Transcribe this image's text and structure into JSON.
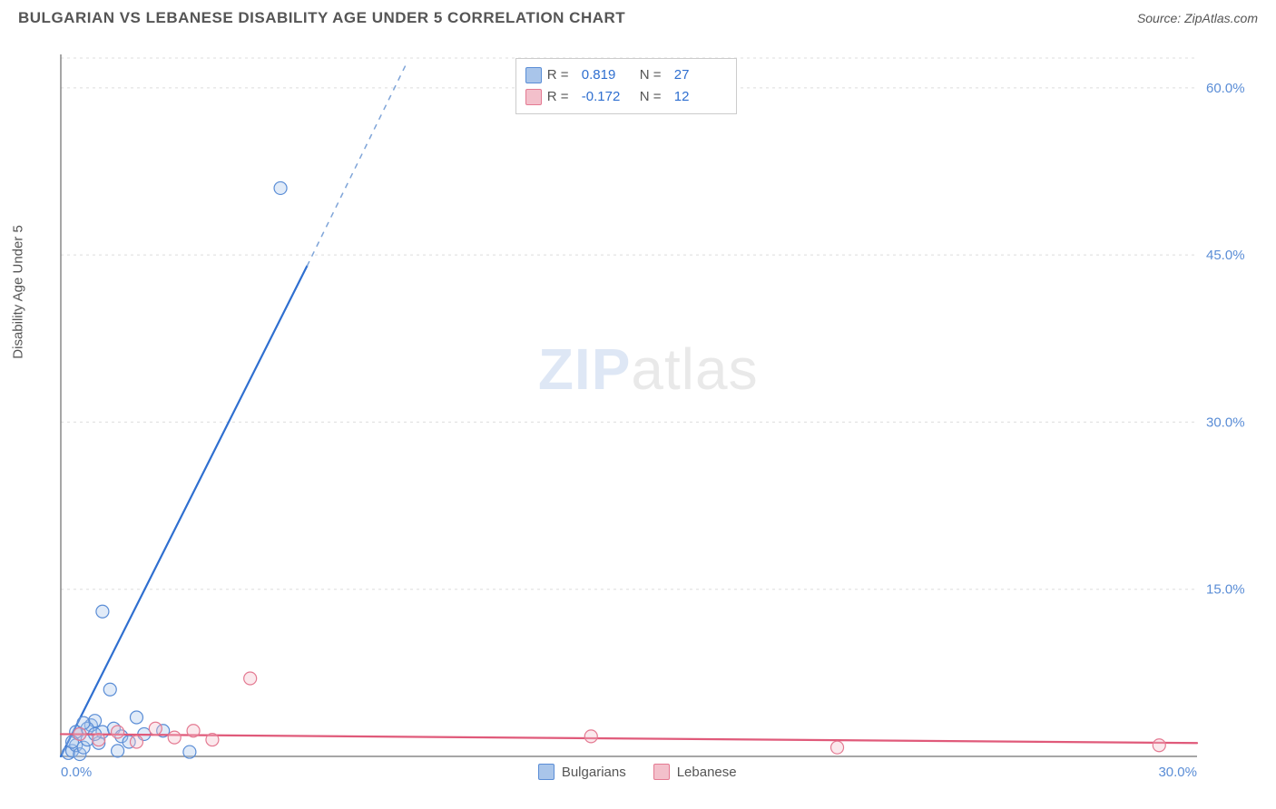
{
  "title": "BULGARIAN VS LEBANESE DISABILITY AGE UNDER 5 CORRELATION CHART",
  "source_label": "Source: ZipAtlas.com",
  "ylabel": "Disability Age Under 5",
  "watermark_zip": "ZIP",
  "watermark_atlas": "atlas",
  "chart": {
    "type": "scatter",
    "background": "#ffffff",
    "grid_color": "#dddddd",
    "axis_color": "#888888",
    "tick_color": "#5a8dd6",
    "xlim": [
      0,
      30
    ],
    "ylim": [
      0,
      63
    ],
    "xticks": [
      {
        "v": 0,
        "label": "0.0%"
      },
      {
        "v": 30,
        "label": "30.0%"
      }
    ],
    "yticks": [
      {
        "v": 15,
        "label": "15.0%"
      },
      {
        "v": 30,
        "label": "30.0%"
      },
      {
        "v": 45,
        "label": "45.0%"
      },
      {
        "v": 60,
        "label": "60.0%"
      }
    ],
    "marker_radius": 7,
    "marker_stroke_width": 1.2,
    "marker_fill_opacity": 0.35,
    "line_width": 2.2
  },
  "series": [
    {
      "name": "Bulgarians",
      "marker_fill": "#a9c5ea",
      "marker_stroke": "#5a8dd6",
      "line_color": "#2f6fd0",
      "dash_extension_color": "#7ea4d8",
      "R": "0.819",
      "N": "27",
      "regression": {
        "x1": 0,
        "y1": 0,
        "x2": 6.5,
        "y2": 44,
        "extend_x": 9.1,
        "extend_y": 62
      },
      "points": [
        [
          0.2,
          0.3
        ],
        [
          0.3,
          0.5
        ],
        [
          0.4,
          1.0
        ],
        [
          0.5,
          0.2
        ],
        [
          0.5,
          2.0
        ],
        [
          0.6,
          0.8
        ],
        [
          0.7,
          1.5
        ],
        [
          0.8,
          2.8
        ],
        [
          0.9,
          3.2
        ],
        [
          1.0,
          1.2
        ],
        [
          1.1,
          2.2
        ],
        [
          1.3,
          6.0
        ],
        [
          1.4,
          2.5
        ],
        [
          1.5,
          0.5
        ],
        [
          1.6,
          1.8
        ],
        [
          1.8,
          1.3
        ],
        [
          2.0,
          3.5
        ],
        [
          2.2,
          2.0
        ],
        [
          1.1,
          13.0
        ],
        [
          2.7,
          2.3
        ],
        [
          3.4,
          0.4
        ],
        [
          0.7,
          2.5
        ],
        [
          0.6,
          3.0
        ],
        [
          0.4,
          2.2
        ],
        [
          0.3,
          1.3
        ],
        [
          0.9,
          2.0
        ],
        [
          5.8,
          51.0
        ]
      ]
    },
    {
      "name": "Lebanese",
      "marker_fill": "#f3c0cb",
      "marker_stroke": "#e47a92",
      "line_color": "#e05a7a",
      "R": "-0.172",
      "N": "12",
      "regression": {
        "x1": 0,
        "y1": 2.0,
        "x2": 30,
        "y2": 1.2
      },
      "points": [
        [
          0.5,
          2.0
        ],
        [
          1.0,
          1.5
        ],
        [
          1.5,
          2.2
        ],
        [
          2.0,
          1.3
        ],
        [
          2.5,
          2.5
        ],
        [
          3.0,
          1.7
        ],
        [
          3.5,
          2.3
        ],
        [
          4.0,
          1.5
        ],
        [
          5.0,
          7.0
        ],
        [
          14.0,
          1.8
        ],
        [
          20.5,
          0.8
        ],
        [
          29.0,
          1.0
        ]
      ]
    }
  ],
  "legend_bottom": [
    {
      "label": "Bulgarians",
      "fill": "#a9c5ea",
      "stroke": "#5a8dd6"
    },
    {
      "label": "Lebanese",
      "fill": "#f3c0cb",
      "stroke": "#e47a92"
    }
  ]
}
